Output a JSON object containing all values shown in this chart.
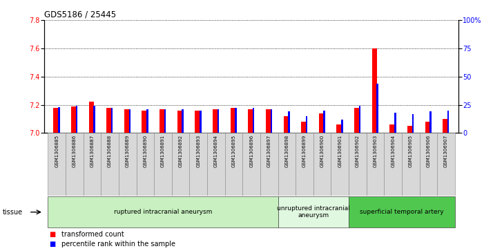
{
  "title": "GDS5186 / 25445",
  "samples": [
    "GSM1306885",
    "GSM1306886",
    "GSM1306887",
    "GSM1306888",
    "GSM1306889",
    "GSM1306890",
    "GSM1306891",
    "GSM1306892",
    "GSM1306893",
    "GSM1306894",
    "GSM1306895",
    "GSM1306896",
    "GSM1306897",
    "GSM1306898",
    "GSM1306899",
    "GSM1306900",
    "GSM1306901",
    "GSM1306902",
    "GSM1306903",
    "GSM1306904",
    "GSM1306905",
    "GSM1306906",
    "GSM1306907"
  ],
  "red_values": [
    7.18,
    7.19,
    7.22,
    7.18,
    7.17,
    7.16,
    7.17,
    7.16,
    7.16,
    7.17,
    7.18,
    7.17,
    7.17,
    7.12,
    7.08,
    7.14,
    7.06,
    7.18,
    7.6,
    7.06,
    7.05,
    7.08,
    7.1
  ],
  "blue_values": [
    23,
    24,
    24,
    22,
    21,
    21,
    21,
    21,
    20,
    21,
    22,
    22,
    21,
    19,
    15,
    20,
    12,
    24,
    44,
    18,
    17,
    19,
    20
  ],
  "ylim_left": [
    7.0,
    7.8
  ],
  "ylim_right": [
    0,
    100
  ],
  "yticks_left": [
    7.0,
    7.2,
    7.4,
    7.6,
    7.8
  ],
  "yticks_right": [
    0,
    25,
    50,
    75,
    100
  ],
  "ytick_labels_right": [
    "0",
    "25",
    "50",
    "75",
    "100%"
  ],
  "groups": [
    {
      "label": "ruptured intracranial aneurysm",
      "start": 0,
      "end": 13,
      "color": "#c8f0c0"
    },
    {
      "label": "unruptured intracranial\naneurysm",
      "start": 13,
      "end": 17,
      "color": "#e0f8e0"
    },
    {
      "label": "superficial temporal artery",
      "start": 17,
      "end": 23,
      "color": "#50c850"
    }
  ],
  "tissue_label": "tissue",
  "legend_red": "transformed count",
  "legend_blue": "percentile rank within the sample",
  "baseline": 7.0
}
